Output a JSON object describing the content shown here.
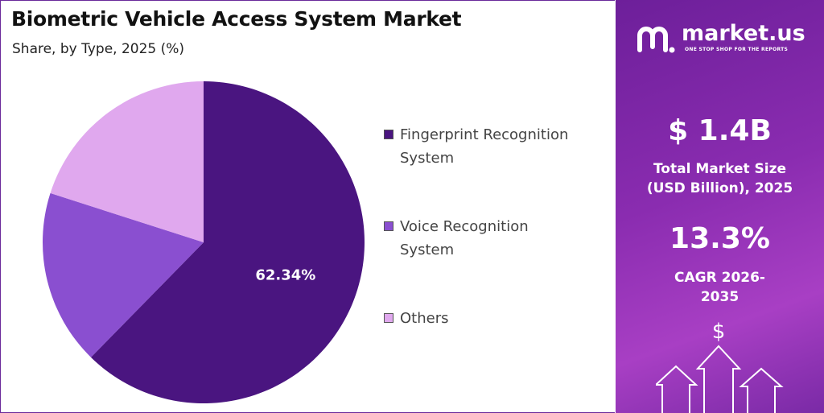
{
  "chart_data": {
    "type": "pie",
    "title": "Biometric Vehicle Access System Market",
    "subtitle": "Share, by Type, 2025 (%)",
    "categories": [
      "Fingerprint Recognition System",
      "Voice Recognition System",
      "Others"
    ],
    "values": [
      62.34,
      17.6,
      20.06
    ],
    "value_labels": [
      "62.34%",
      null,
      null
    ],
    "colors": [
      "#4a1580",
      "#8a4fd0",
      "#e0a8ee"
    ],
    "legend": "right"
  },
  "sidebar": {
    "brand": "market.us",
    "tagline": "ONE STOP SHOP FOR THE REPORTS",
    "market_size": "$ 1.4B",
    "market_size_label": "Total Market Size (USD Billion), 2025",
    "cagr": "13.3%",
    "cagr_label": "CAGR 2026-2035"
  }
}
